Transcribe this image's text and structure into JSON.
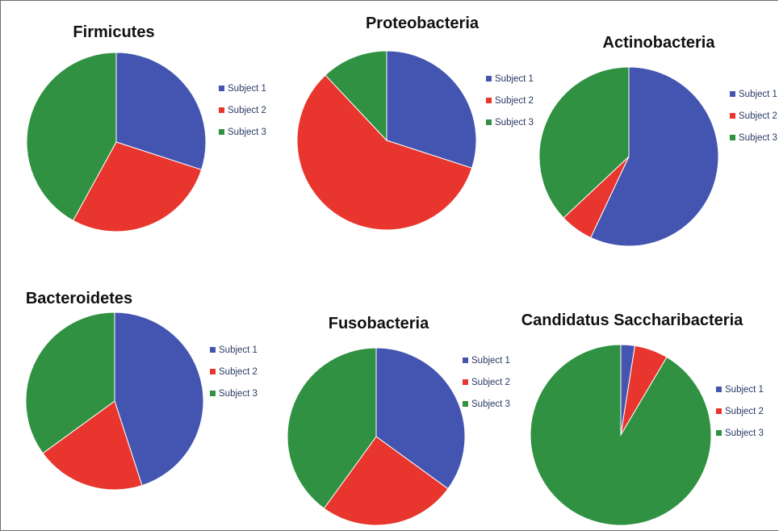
{
  "colors": {
    "subject_1": "#4355B0",
    "subject_2": "#E8362E",
    "subject_3": "#2F9141"
  },
  "chart_data": [
    {
      "type": "pie",
      "title": "Firmicutes",
      "categories": [
        "Subject 1",
        "Subject 2",
        "Subject 3"
      ],
      "values": [
        30,
        28,
        42
      ]
    },
    {
      "type": "pie",
      "title": "Proteobacteria",
      "categories": [
        "Subject 1",
        "Subject 2",
        "Subject 3"
      ],
      "values": [
        30,
        58,
        12
      ]
    },
    {
      "type": "pie",
      "title": "Actinobacteria",
      "categories": [
        "Subject 1",
        "Subject 2",
        "Subject 3"
      ],
      "values": [
        57,
        6,
        37
      ]
    },
    {
      "type": "pie",
      "title": "Bacteroidetes",
      "categories": [
        "Subject 1",
        "Subject 2",
        "Subject 3"
      ],
      "values": [
        45,
        20,
        35
      ]
    },
    {
      "type": "pie",
      "title": "Fusobacteria",
      "categories": [
        "Subject 1",
        "Subject 2",
        "Subject 3"
      ],
      "values": [
        35,
        25,
        40
      ]
    },
    {
      "type": "pie",
      "title": "Candidatus Saccharibacteria",
      "categories": [
        "Subject 1",
        "Subject 2",
        "Subject 3"
      ],
      "values": [
        2.5,
        6,
        91.5
      ]
    }
  ]
}
